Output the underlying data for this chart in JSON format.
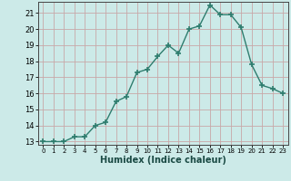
{
  "x": [
    0,
    1,
    2,
    3,
    4,
    5,
    6,
    7,
    8,
    9,
    10,
    11,
    12,
    13,
    14,
    15,
    16,
    17,
    18,
    19,
    20,
    21,
    22,
    23
  ],
  "y": [
    13,
    13,
    13,
    13.3,
    13.3,
    14.0,
    14.2,
    15.5,
    15.8,
    17.3,
    17.5,
    18.3,
    19.0,
    18.5,
    20.0,
    20.2,
    21.5,
    20.9,
    20.9,
    20.1,
    17.8,
    16.5,
    16.3,
    16.0
  ],
  "xlabel": "Humidex (Indice chaleur)",
  "line_color": "#2e7d6e",
  "bg_color": "#cceae8",
  "grid_color": "#b0d8d4",
  "ylim_min": 12.8,
  "ylim_max": 21.7,
  "xlim_min": -0.5,
  "xlim_max": 23.5,
  "yticks": [
    13,
    14,
    15,
    16,
    17,
    18,
    19,
    20,
    21
  ],
  "xticks": [
    0,
    1,
    2,
    3,
    4,
    5,
    6,
    7,
    8,
    9,
    10,
    11,
    12,
    13,
    14,
    15,
    16,
    17,
    18,
    19,
    20,
    21,
    22,
    23
  ]
}
